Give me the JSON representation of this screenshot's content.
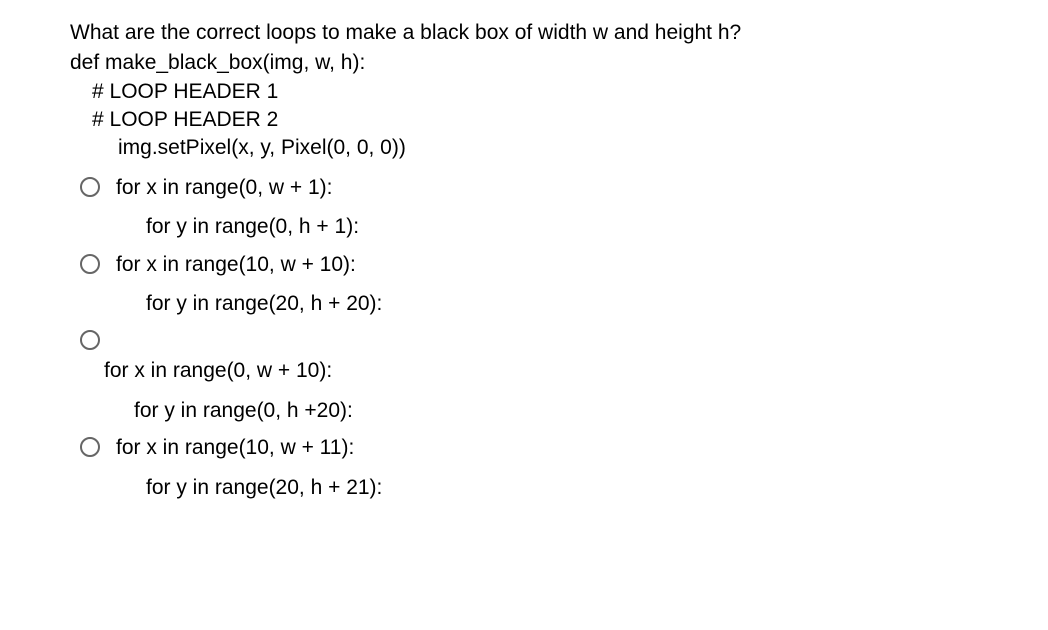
{
  "question": {
    "prompt": "What are the correct loops to make a black box of width w and height h?",
    "code": {
      "def_line": "def make_black_box(img, w, h):",
      "comment1": "# LOOP HEADER 1",
      "comment2": "# LOOP HEADER 2",
      "body": "img.setPixel(x, y, Pixel(0, 0, 0))"
    }
  },
  "options": [
    {
      "line1": "for x in range(0, w + 1):",
      "line2": "for y in range(0, h + 1):"
    },
    {
      "line1": "for x in range(10, w + 10):",
      "line2": "for y in range(20, h + 20):"
    },
    {
      "line1": "for x in range(0, w + 10):",
      "line2": "for y in range(0, h +20):"
    },
    {
      "line1": "for x in range(10, w + 11):",
      "line2": "for y in range(20, h + 21):"
    }
  ],
  "colors": {
    "background": "#ffffff",
    "text": "#000000",
    "radio_border": "#666666"
  },
  "typography": {
    "font_family": "Arial",
    "font_size_pt": 16
  }
}
